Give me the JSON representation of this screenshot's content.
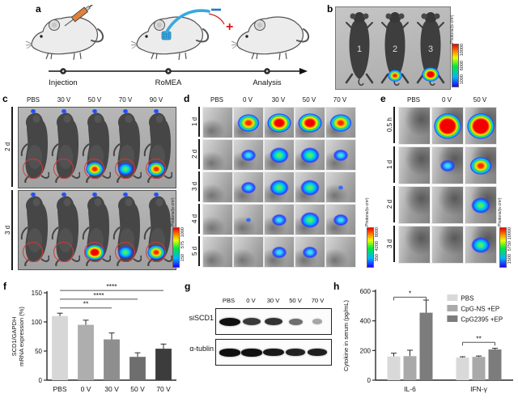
{
  "panels": {
    "a": {
      "label": "a",
      "steps": [
        "Injection",
        "RoMEA",
        "Analysis"
      ]
    },
    "b": {
      "label": "b",
      "mice": [
        {
          "number": "1",
          "signal": "none"
        },
        {
          "number": "2",
          "signal": "high"
        },
        {
          "number": "3",
          "signal": "vhigh"
        }
      ],
      "colorbar": {
        "unit": "Photons/(s·cm²)",
        "ticks": [
          "10000",
          "6000",
          "1000"
        ]
      }
    },
    "c": {
      "label": "c",
      "columns": [
        "PBS",
        "30 V",
        "50 V",
        "70 V",
        "90 V"
      ],
      "rows": [
        "2 d",
        "3 d"
      ],
      "signals": [
        [
          "none",
          "none",
          "high",
          "medium",
          "high"
        ],
        [
          "none",
          "none",
          "vhigh",
          "medium",
          "high"
        ]
      ],
      "colorbar": {
        "unit": "Photons/(s·cm²)",
        "ticks": [
          "1000",
          "575",
          "150"
        ]
      }
    },
    "d": {
      "label": "d",
      "columns": [
        "PBS",
        "0 V",
        "30 V",
        "50 V",
        "70 V"
      ],
      "rows": [
        "1 d",
        "2 d",
        "3 d",
        "4 d",
        "5 d"
      ],
      "signals": [
        [
          "none",
          "high",
          "vhigh",
          "vhigh",
          "high"
        ],
        [
          "none",
          "low",
          "medium",
          "medium",
          "low"
        ],
        [
          "none",
          "low",
          "medium",
          "medium",
          "trace"
        ],
        [
          "none",
          "trace",
          "low",
          "medium",
          "low"
        ],
        [
          "none",
          "none",
          "low",
          "low",
          "none"
        ]
      ],
      "colorbar": {
        "unit": "Photons/(s·cm²)",
        "ticks": [
          "8000",
          "4200",
          "350"
        ]
      }
    },
    "e": {
      "label": "e",
      "columns": [
        "PBS",
        "0 V",
        "50 V"
      ],
      "rows": [
        "0.5 h",
        "1 d",
        "2 d",
        "3 d"
      ],
      "signals": [
        [
          "none",
          "max",
          "max"
        ],
        [
          "none",
          "low",
          "high"
        ],
        [
          "none",
          "none",
          "medium"
        ],
        [
          "none",
          "none",
          "medium"
        ]
      ],
      "colorbar": {
        "unit": "Photons/(s·cm²)",
        "ticks": [
          "10000",
          "5750",
          "1500"
        ]
      }
    },
    "f": {
      "label": "f"
    },
    "g": {
      "label": "g",
      "columns": [
        "PBS",
        "0 V",
        "30 V",
        "50 V",
        "70 V"
      ],
      "rows": [
        {
          "name": "siSCD1",
          "bands": [
            1,
            0.78,
            0.82,
            0.5,
            0.2
          ]
        },
        {
          "name": "α-tublin",
          "bands": [
            1,
            1,
            0.95,
            0.9,
            0.92
          ]
        }
      ]
    },
    "h": {
      "label": "h"
    }
  },
  "chart_data": [
    {
      "id": "f",
      "type": "bar",
      "categories": [
        "PBS",
        "0 V",
        "30 V",
        "50 V",
        "70 V"
      ],
      "values": [
        110,
        95,
        70,
        40,
        54
      ],
      "errors": [
        5,
        8,
        11,
        7,
        8
      ],
      "bar_colors": [
        "#d7d7d7",
        "#aeaeae",
        "#8e8e8e",
        "#6e6e6e",
        "#3c3c3c"
      ],
      "title": "",
      "xlabel": "",
      "ylabel": "SCD1/GAPDH\nmRNA expression (%)",
      "ylim": [
        0,
        150
      ],
      "yticks": [
        0,
        50,
        100,
        150
      ],
      "significance": [
        {
          "from": 0,
          "to": 2,
          "label": "**",
          "y": 124
        },
        {
          "from": 0,
          "to": 3,
          "label": "****",
          "y": 139
        },
        {
          "from": 0,
          "to": 4,
          "label": "****",
          "y": 154
        }
      ]
    },
    {
      "id": "h",
      "type": "grouped-bar",
      "categories": [
        "IL-6",
        "IFN-γ"
      ],
      "series": [
        {
          "name": "PBS",
          "color": "#d9d9d9",
          "values": [
            160,
            152
          ],
          "errors": [
            22,
            6
          ]
        },
        {
          "name": "CpG-NS +EP",
          "color": "#a9a9a9",
          "values": [
            162,
            157
          ],
          "errors": [
            40,
            6
          ]
        },
        {
          "name": "CpG2395 +EP",
          "color": "#7c7c7c",
          "values": [
            455,
            207
          ],
          "errors": [
            85,
            8
          ]
        }
      ],
      "title": "",
      "xlabel": "",
      "ylabel": "Cytokine in serum (pg/mL)",
      "ylim": [
        0,
        600
      ],
      "yticks": [
        0,
        200,
        400,
        600
      ],
      "legend": true,
      "significance": [
        {
          "group": 0,
          "from": 0,
          "to": 2,
          "label": "*",
          "y": 560
        },
        {
          "group": 1,
          "from": 0,
          "to": 2,
          "label": "**",
          "y": 255
        }
      ]
    }
  ]
}
